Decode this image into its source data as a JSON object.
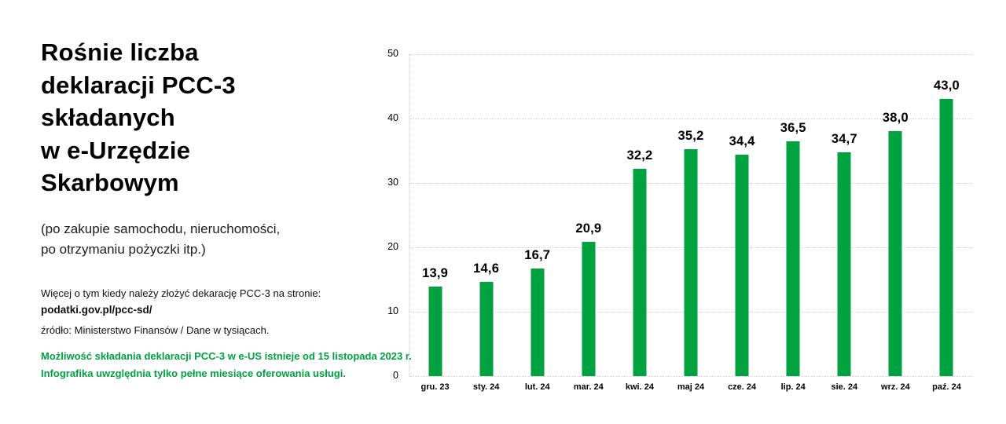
{
  "colors": {
    "accent_green": "#00a13f",
    "text_black": "#000000",
    "grid_gray": "#d2d2d2"
  },
  "panel": {
    "title": "Rośnie liczba\ndeklaracji PCC-3\nskładanych\nw e-Urzędzie\nSkarbowym",
    "subtitle": "(po zakupie samochodu, nieruchomości,\npo otrzymaniu pożyczki itp.)",
    "info_line": "Więcej o tym kiedy należy złożyć dekarację PCC-3 na stronie:",
    "info_url": "podatki.gov.pl/pcc-sd/",
    "source_line": "źródło: Ministerstwo Finansów / Dane w tysiącach.",
    "availability_note": "Możliwość składania deklaracji PCC-3 w e-US istnieje od 15 listopada 2023 r.\nInfografika uwzględnia tylko pełne miesiące oferowania usługi."
  },
  "chart_data": {
    "type": "bar",
    "title": "Rośnie liczba deklaracji PCC-3 składanych w e-Urzędzie Skarbowym",
    "categories": [
      "gru. 23",
      "sty. 24",
      "lut. 24",
      "mar. 24",
      "kwi. 24",
      "maj 24",
      "cze. 24",
      "lip. 24",
      "sie. 24",
      "wrz. 24",
      "paź. 24"
    ],
    "values": [
      13.9,
      14.6,
      16.7,
      20.9,
      32.2,
      35.2,
      34.4,
      36.5,
      34.7,
      38.0,
      43.0
    ],
    "value_labels": [
      "13,9",
      "14,6",
      "16,7",
      "20,9",
      "32,2",
      "35,2",
      "34,4",
      "36,5",
      "34,7",
      "38,0",
      "43,0"
    ],
    "unit_note": "Dane w tysiącach",
    "xlabel": "",
    "ylabel": "",
    "y_ticks": [
      0,
      10,
      20,
      30,
      40,
      50
    ],
    "ylim": [
      0,
      50
    ],
    "grid": true,
    "legend": false,
    "bar_color": "#00a13f"
  }
}
